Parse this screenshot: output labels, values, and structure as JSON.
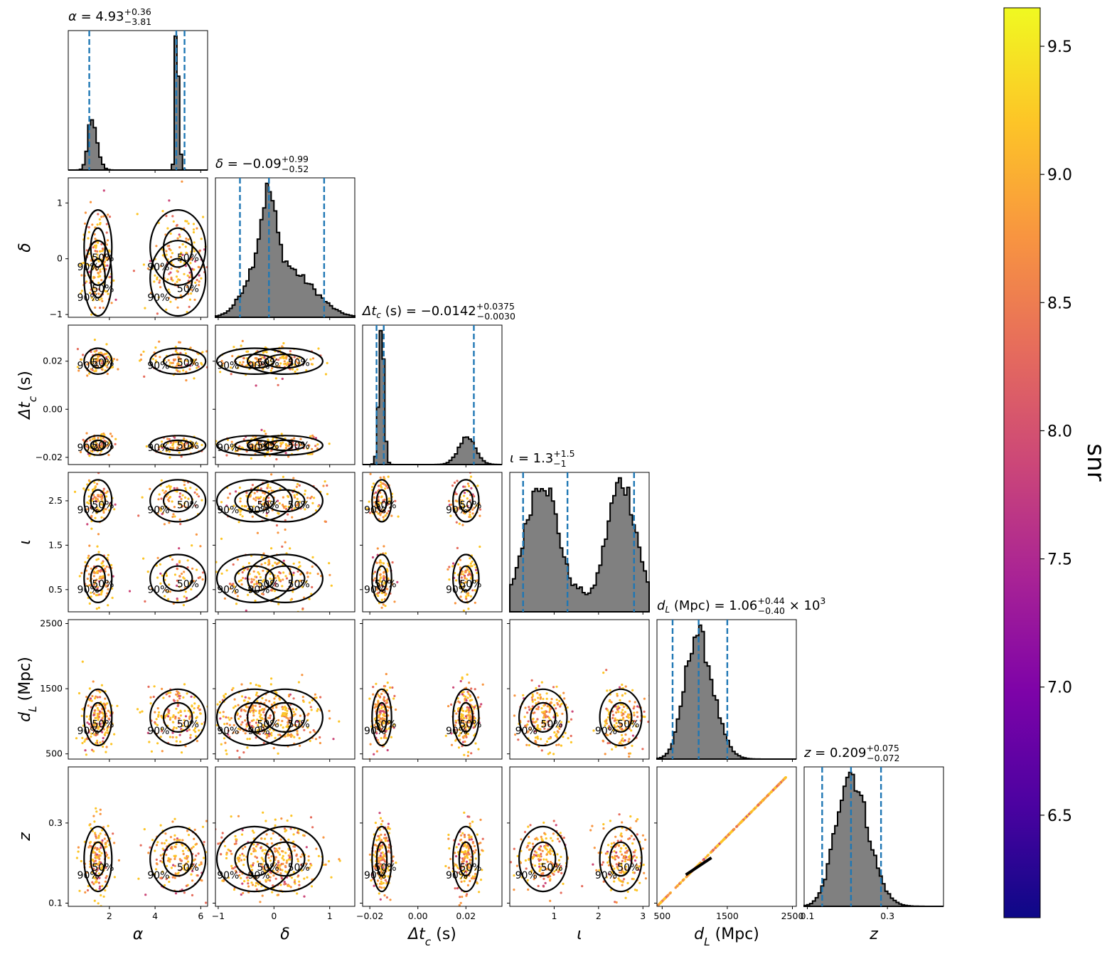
{
  "chart_data": {
    "type": "corner",
    "description_label_colorbar": "snr",
    "parameters": [
      {
        "key": "alpha",
        "symbol": "α",
        "axis_label": "α",
        "title_lhs": "α",
        "median": "4.93",
        "plus": "+0.36",
        "minus": "−3.81",
        "title_suffix": "",
        "range": [
          0.2,
          6.3
        ],
        "ticks": [
          2,
          4,
          6
        ],
        "tick_labels": [
          "2",
          "4",
          "6"
        ],
        "quantiles": [
          1.12,
          4.93,
          5.29
        ]
      },
      {
        "key": "delta",
        "symbol": "δ",
        "axis_label": "δ",
        "title_lhs": "δ",
        "median": "−0.09",
        "plus": "+0.99",
        "minus": "−0.52",
        "title_suffix": "",
        "range": [
          -1.05,
          1.45
        ],
        "ticks": [
          -1,
          0,
          1
        ],
        "tick_labels": [
          "−1",
          "0",
          "1"
        ],
        "quantiles": [
          -0.61,
          -0.09,
          0.9
        ]
      },
      {
        "key": "dtc",
        "symbol": "Δt_c (s)",
        "axis_label": "Δt_c (s)",
        "title_lhs": "Δt_c (s)",
        "median": "−0.0142",
        "plus": "+0.0375",
        "minus": "−0.0030",
        "title_suffix": "",
        "range": [
          -0.023,
          0.035
        ],
        "ticks": [
          -0.02,
          0.0,
          0.02
        ],
        "tick_labels": [
          "−0.02",
          "0.00",
          "0.02"
        ],
        "quantiles": [
          -0.0172,
          -0.0142,
          0.0233
        ]
      },
      {
        "key": "iota",
        "symbol": "ι",
        "axis_label": "ι",
        "title_lhs": "ι",
        "median": "1.3",
        "plus": "+1.5",
        "minus": "−1",
        "title_suffix": "",
        "range": [
          0.0,
          3.14
        ],
        "ticks": [
          1,
          2,
          3
        ],
        "tick_labels": [
          "1",
          "2",
          "3"
        ],
        "y_ticks": [
          0.5,
          1.5,
          2.5
        ],
        "y_tick_labels": [
          "0.5",
          "1.5",
          "2.5"
        ],
        "quantiles": [
          0.3,
          1.3,
          2.8
        ]
      },
      {
        "key": "dL",
        "symbol": "d_L (Mpc)",
        "axis_label": "d_L (Mpc)",
        "title_lhs": "d_L (Mpc)",
        "median": "1.06",
        "plus": "+0.44",
        "minus": "−0.40",
        "title_suffix": "× 10^3",
        "range": [
          420,
          2560
        ],
        "ticks": [
          500,
          1500,
          2500
        ],
        "tick_labels": [
          "500",
          "1500",
          "2500"
        ],
        "quantiles": [
          660,
          1060,
          1500
        ]
      },
      {
        "key": "z",
        "symbol": "z",
        "axis_label": "z",
        "title_lhs": "z",
        "median": "0.209",
        "plus": "+0.075",
        "minus": "−0.072",
        "title_suffix": "",
        "range": [
          0.092,
          0.44
        ],
        "ticks": [
          0.1,
          0.3
        ],
        "tick_labels": [
          "0.1",
          "0.3"
        ],
        "quantiles": [
          0.137,
          0.209,
          0.284
        ]
      }
    ],
    "histograms": [
      {
        "param": "alpha",
        "components": [
          {
            "mu": 1.2,
            "sigma": 0.25,
            "w": 0.33,
            "skew": 1.6
          },
          {
            "mu": 4.93,
            "sigma": 0.1,
            "w": 1.0,
            "skew": 1.7
          }
        ]
      },
      {
        "param": "delta",
        "components": [
          {
            "mu": -0.1,
            "sigma": 0.12,
            "w": 0.55
          },
          {
            "mu": -0.2,
            "sigma": 0.3,
            "w": 0.5
          },
          {
            "mu": 0.4,
            "sigma": 0.4,
            "w": 0.35
          }
        ]
      },
      {
        "param": "dtc",
        "components": [
          {
            "mu": -0.0152,
            "sigma": 0.0011,
            "w": 1.0
          },
          {
            "mu": 0.0205,
            "sigma": 0.0035,
            "w": 0.2
          }
        ]
      },
      {
        "param": "iota",
        "components": [
          {
            "mu": 0.72,
            "sigma": 0.38,
            "w": 0.92
          },
          {
            "mu": 1.6,
            "sigma": 0.12,
            "w": 0.07
          },
          {
            "mu": 2.52,
            "sigma": 0.34,
            "w": 0.9
          }
        ]
      },
      {
        "param": "dL",
        "components": [
          {
            "mu": 1030,
            "sigma": 240,
            "w": 1.0,
            "skew": 0.7
          }
        ]
      },
      {
        "param": "z",
        "components": [
          {
            "mu": 0.205,
            "sigma": 0.045,
            "w": 1.0,
            "skew": 0.7
          }
        ]
      }
    ],
    "contour_levels": [
      "50%",
      "90%"
    ],
    "colorbar": {
      "label": "snr",
      "min": 6.1,
      "max": 9.65,
      "ticks": [
        6.5,
        7.0,
        7.5,
        8.0,
        8.5,
        9.0,
        9.5
      ],
      "tick_labels": [
        "6.5",
        "7.0",
        "7.5",
        "8.0",
        "8.5",
        "9.0",
        "9.5"
      ],
      "colormap": "plasma"
    },
    "colors": {
      "histogram_fill": "#808080",
      "quantile_line": "#1f77b4",
      "contour": "#000000"
    },
    "grid": false
  }
}
